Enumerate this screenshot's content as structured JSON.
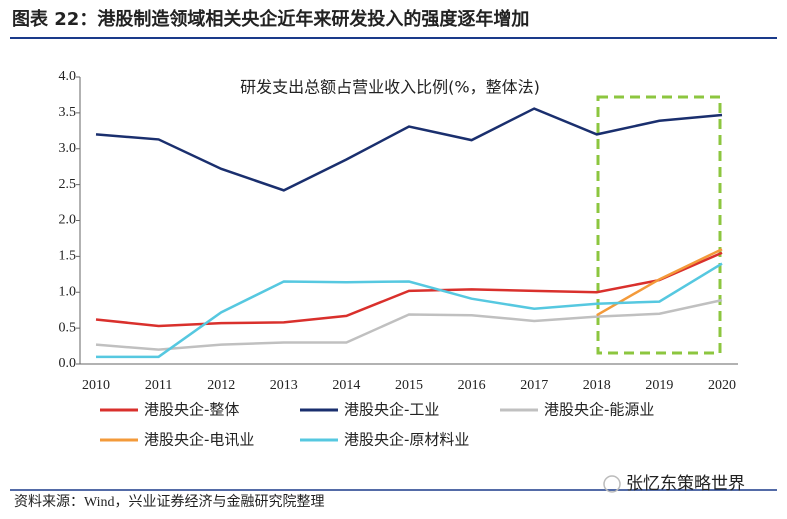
{
  "chart_data": {
    "type": "line",
    "title": "图表 22：港股制造领域相关央企近年来研发投入的强度逐年增加",
    "subtitle": "研发支出总额占营业收入比例(%，整体法)",
    "source": "资料来源：Wind，兴业证券经济与金融研究院整理",
    "watermark": "张忆东策略世界",
    "categories": [
      "2010",
      "2011",
      "2012",
      "2013",
      "2014",
      "2015",
      "2016",
      "2017",
      "2018",
      "2019",
      "2020"
    ],
    "series": [
      {
        "name": "港股央企-整体",
        "color": "#d9302c",
        "values": [
          0.62,
          0.53,
          0.57,
          0.58,
          0.67,
          1.02,
          1.04,
          1.02,
          1.0,
          1.17,
          1.55
        ]
      },
      {
        "name": "港股央企-工业",
        "color": "#1a2f6e",
        "values": [
          3.2,
          3.13,
          2.72,
          2.42,
          2.85,
          3.31,
          3.12,
          3.56,
          3.2,
          3.39,
          3.47
        ]
      },
      {
        "name": "港股央企-能源业",
        "color": "#c0c0c0",
        "values": [
          0.27,
          0.2,
          0.27,
          0.3,
          0.3,
          0.69,
          0.68,
          0.6,
          0.66,
          0.7,
          0.89
        ]
      },
      {
        "name": "港股央企-电讯业",
        "color": "#f39a3a",
        "values": [
          null,
          null,
          null,
          null,
          null,
          null,
          null,
          null,
          0.68,
          1.18,
          1.6
        ]
      },
      {
        "name": "港股央企-原材料业",
        "color": "#56c8e0",
        "values": [
          0.1,
          0.1,
          0.72,
          1.15,
          1.14,
          1.15,
          0.91,
          0.77,
          0.84,
          0.87,
          1.4
        ]
      }
    ],
    "ylim": [
      0,
      4
    ],
    "yticks": [
      {
        "value": 0,
        "label": "0.0"
      },
      {
        "value": 0.5,
        "label": "0.5"
      },
      {
        "value": 1,
        "label": "1.0"
      },
      {
        "value": 1.5,
        "label": "1.5"
      },
      {
        "value": 2,
        "label": "2.0"
      },
      {
        "value": 2.5,
        "label": "2.5"
      },
      {
        "value": 3,
        "label": "3.0"
      },
      {
        "value": 3.5,
        "label": "3.5"
      },
      {
        "value": 4,
        "label": "4.0"
      }
    ]
  }
}
